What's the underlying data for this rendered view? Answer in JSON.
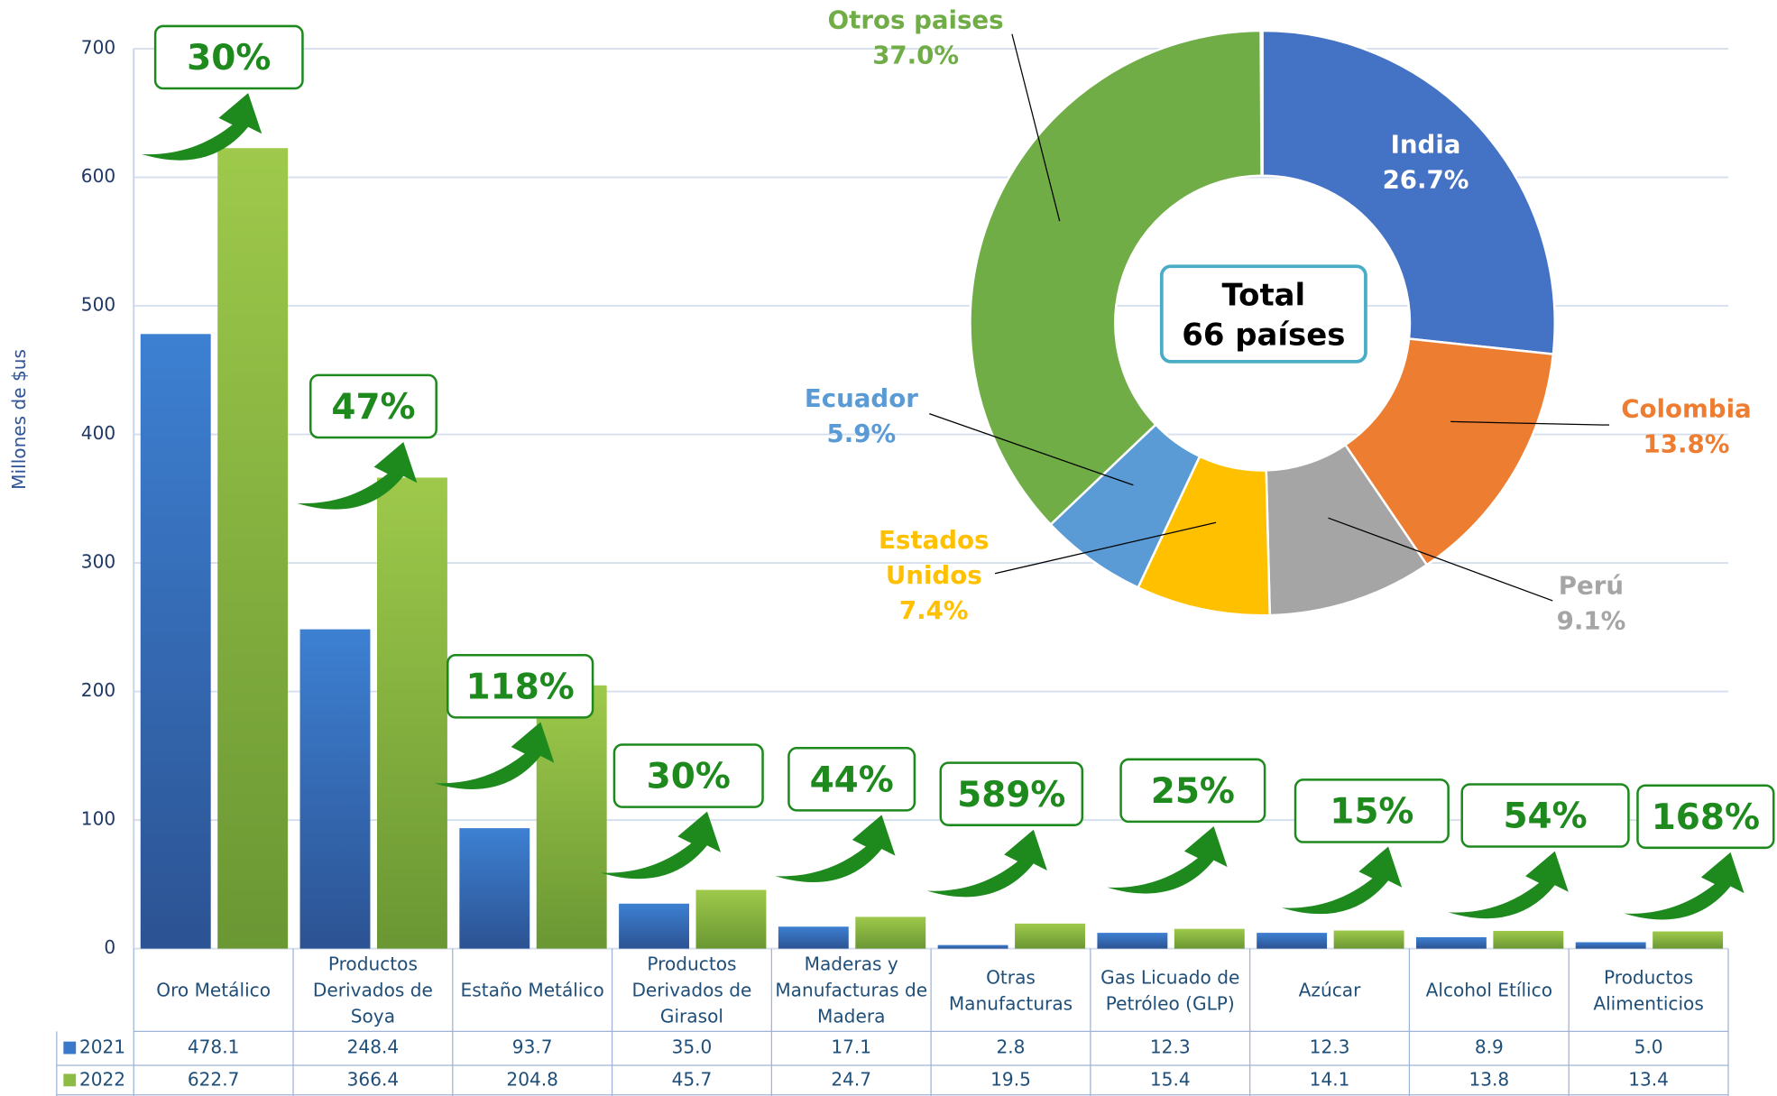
{
  "chart_data": [
    {
      "type": "bar",
      "y_label": "Millones de $us",
      "categories": [
        "Oro Metálico",
        "Productos Derivados de Soya",
        "Estaño Metálico",
        "Productos Derivados de Girasol",
        "Maderas y Manufacturas de Madera",
        "Otras Manufacturas",
        "Gas Licuado de Petróleo (GLP)",
        "Azúcar",
        "Alcohol Etílico",
        "Productos Alimenticios"
      ],
      "series": [
        {
          "name": "2021",
          "color": "#3a78c9",
          "values": [
            478.1,
            248.4,
            93.7,
            35,
            17.1,
            2.8,
            12.3,
            12.3,
            8.9,
            5
          ],
          "value_labels": [
            "478.1",
            "248.4",
            "93.7",
            "35.0",
            "17.1",
            "2.8",
            "12.3",
            "12.3",
            "8.9",
            "5.0"
          ]
        },
        {
          "name": "2022",
          "color": "#8dbb45",
          "values": [
            622.7,
            366.4,
            204.8,
            45.7,
            24.7,
            19.5,
            15.4,
            14.1,
            13.8,
            13.4
          ],
          "value_labels": [
            "622.7",
            "366.4",
            "204.8",
            "45.7",
            "24.7",
            "19.5",
            "15.4",
            "14.1",
            "13.8",
            "13.4"
          ]
        }
      ],
      "annotations": [
        {
          "value": 30,
          "label": "30%"
        },
        {
          "value": 47,
          "label": "47%"
        },
        {
          "value": 118,
          "label": "118%"
        },
        {
          "value": 30,
          "label": "30%"
        },
        {
          "value": 44,
          "label": "44%"
        },
        {
          "value": 589,
          "label": "589%"
        },
        {
          "value": 25,
          "label": "25%"
        },
        {
          "value": 15,
          "label": "15%"
        },
        {
          "value": 54,
          "label": "54%"
        },
        {
          "value": 168,
          "label": "168%"
        }
      ],
      "ylim": [
        0,
        700
      ],
      "yticks": [
        0,
        100,
        200,
        300,
        400,
        500,
        600,
        700
      ],
      "grid": true
    },
    {
      "type": "pie",
      "center_text": [
        "Total",
        "66 países"
      ],
      "categories": [
        "India",
        "Colombia",
        "Perú",
        "Estados Unidos",
        "Ecuador",
        "Otros paises"
      ],
      "values": [
        26.7,
        13.8,
        9.1,
        7.4,
        5.9,
        37.0
      ],
      "value_labels": [
        "26.7%",
        "13.8%",
        "9.1%",
        "7.4%",
        "5.9%",
        "37.0%"
      ],
      "colors": [
        "#4472c4",
        "#ed7d31",
        "#a5a5a5",
        "#ffc000",
        "#5b9bd5",
        "#70ad47"
      ]
    }
  ]
}
